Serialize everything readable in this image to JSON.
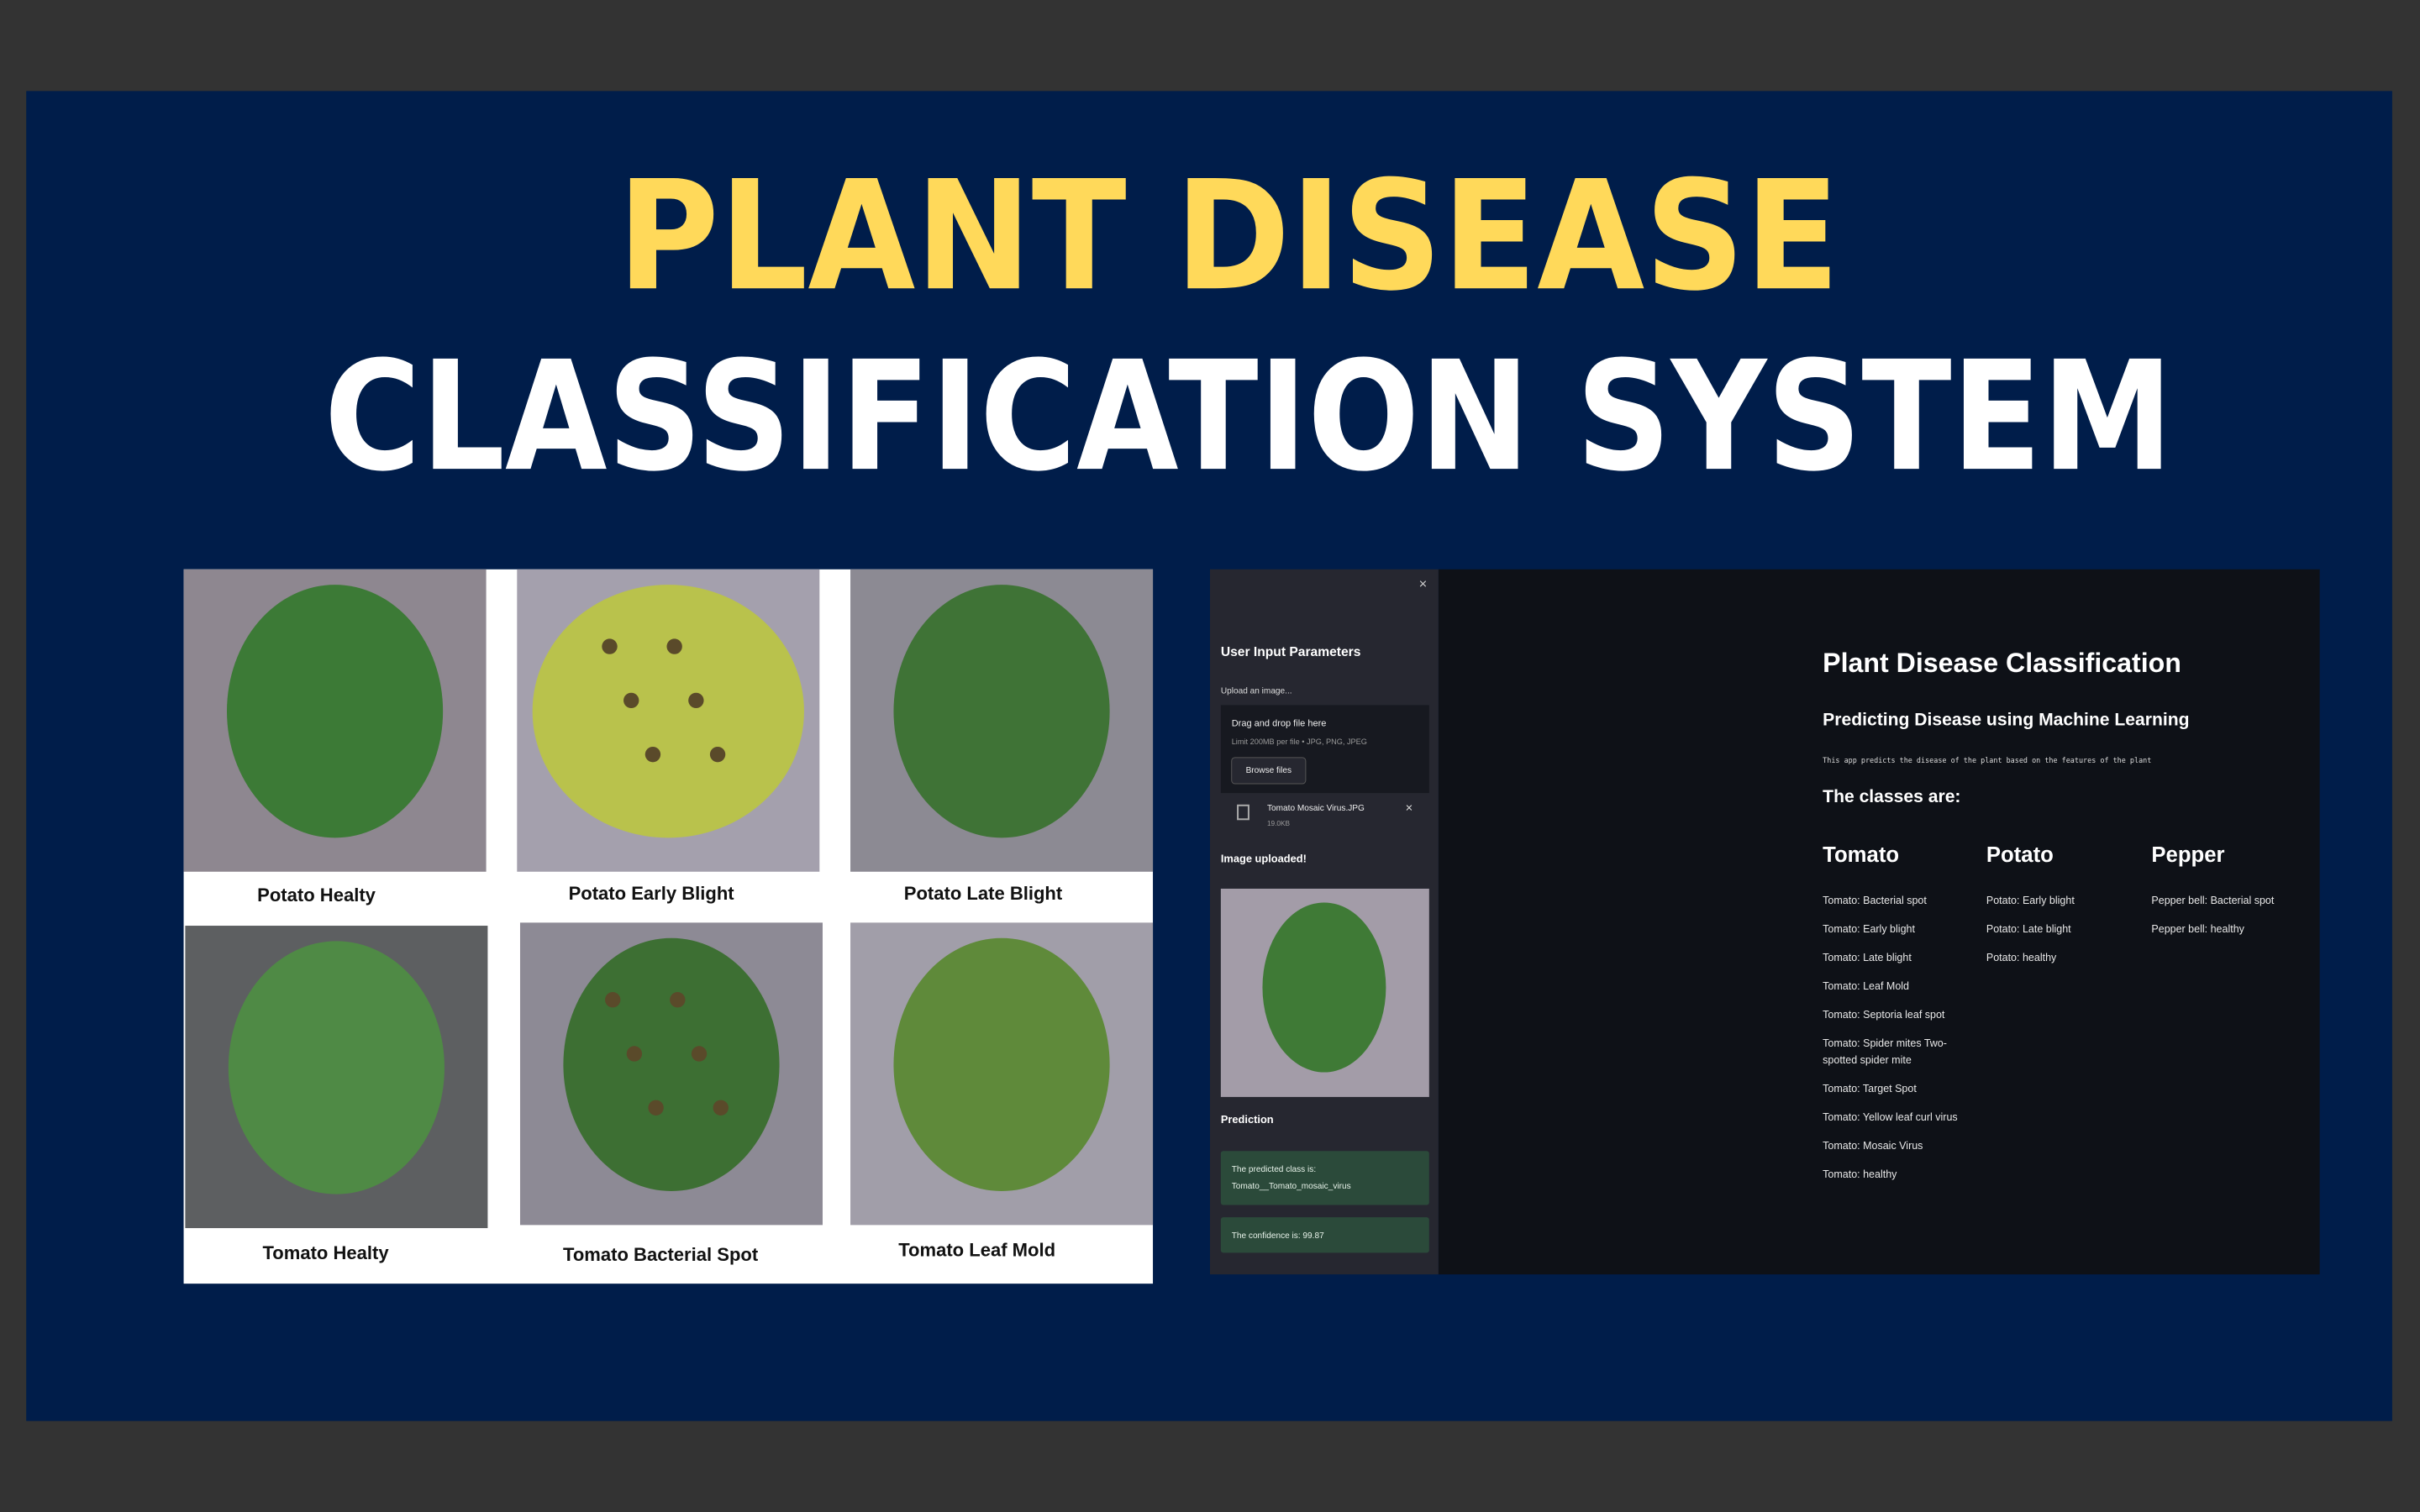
{
  "header": {
    "line1": "PLANT DISEASE",
    "line2": "CLASSIFICATION SYSTEM"
  },
  "samples": [
    "Potato Healty",
    "Potato Early Blight",
    "Potato Late Blight",
    "Tomato Healty",
    "Tomato Bacterial Spot",
    "Tomato Leaf Mold"
  ],
  "sidebar": {
    "close": "×",
    "heading": "User Input Parameters",
    "upload_label": "Upload an image...",
    "drop_title": "Drag and drop file here",
    "drop_limit": "Limit 200MB per file • JPG, PNG, JPEG",
    "browse": "Browse files",
    "file_name": "Tomato Mosaic Virus.JPG",
    "file_size": "19.0KB",
    "file_remove": "×",
    "uploaded": "Image uploaded!",
    "prediction": "Prediction",
    "predicted_label": "The predicted class is:",
    "predicted_class": "Tomato__Tomato_mosaic_virus",
    "confidence": "The confidence is: 99.87"
  },
  "main": {
    "title": "Plant Disease Classification",
    "subtitle": "Predicting Disease using Machine Learning",
    "description": "This app predicts the disease of the plant based on the features of the plant",
    "classes_heading": "The classes are:",
    "columns": [
      {
        "name": "Tomato",
        "items": [
          "Tomato: Bacterial spot",
          "Tomato: Early blight",
          "Tomato: Late blight",
          "Tomato: Leaf Mold",
          "Tomato: Septoria leaf spot",
          "Tomato: Spider mites Two-spotted spider mite",
          "Tomato: Target Spot",
          "Tomato: Yellow leaf curl virus",
          "Tomato: Mosaic Virus",
          "Tomato: healthy"
        ]
      },
      {
        "name": "Potato",
        "items": [
          "Potato: Early blight",
          "Potato: Late blight",
          "Potato: healthy"
        ]
      },
      {
        "name": "Pepper",
        "items": [
          "Pepper bell: Bacterial spot",
          "Pepper bell: healthy"
        ]
      }
    ]
  }
}
